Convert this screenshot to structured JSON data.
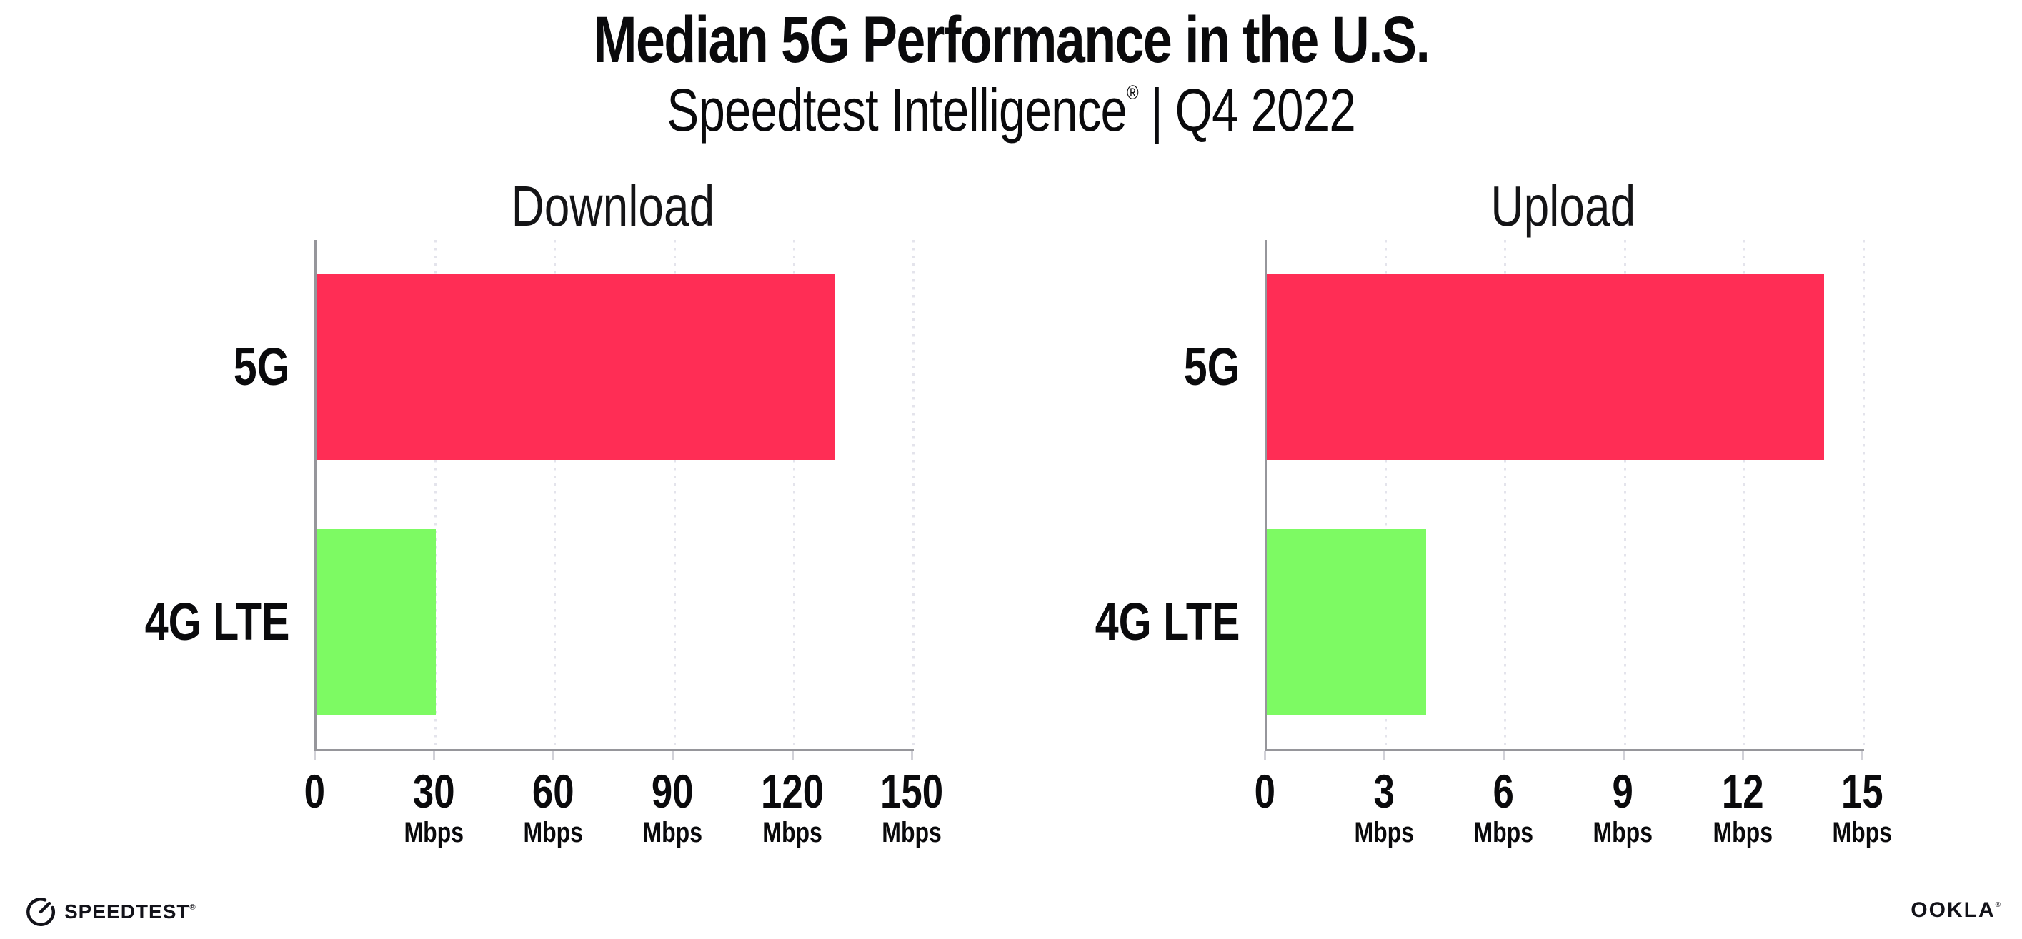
{
  "title": "Median 5G Performance in the U.S.",
  "subtitle": {
    "brand": "Speedtest Intelligence",
    "registered_mark": "®",
    "separator": "|",
    "period": "Q4 2022"
  },
  "chart_data": [
    {
      "type": "bar",
      "orientation": "horizontal",
      "title": "Download",
      "categories": [
        "5G",
        "4G LTE"
      ],
      "values": [
        130,
        30
      ],
      "unit": "Mbps",
      "xlim": [
        0,
        150
      ],
      "xticks": [
        0,
        30,
        60,
        90,
        120,
        150
      ],
      "tick_unit_label": "Mbps",
      "grid": "dotted-vertical-at-each-tick",
      "legend": "none",
      "bar_colors": [
        "#ff2d55",
        "#7dfa63"
      ]
    },
    {
      "type": "bar",
      "orientation": "horizontal",
      "title": "Upload",
      "categories": [
        "5G",
        "4G LTE"
      ],
      "values": [
        14,
        4
      ],
      "unit": "Mbps",
      "xlim": [
        0,
        15
      ],
      "xticks": [
        0,
        3,
        6,
        9,
        12,
        15
      ],
      "tick_unit_label": "Mbps",
      "grid": "dotted-vertical-at-each-tick",
      "legend": "none",
      "bar_colors": [
        "#ff2d55",
        "#7dfa63"
      ]
    }
  ],
  "footer": {
    "speedtest_wordmark": "SPEEDTEST",
    "speedtest_mark": "®",
    "ookla_wordmark": "OOKLA",
    "ookla_mark": "®"
  },
  "colors": {
    "bar_5g": "#ff2d55",
    "bar_4g_lte": "#7dfa63",
    "axis_line": "#96969b",
    "gridline_dot": "#e4e4ec",
    "tick_mark": "#d2d2d8",
    "text": "#0a0a0c",
    "background": "#ffffff"
  }
}
